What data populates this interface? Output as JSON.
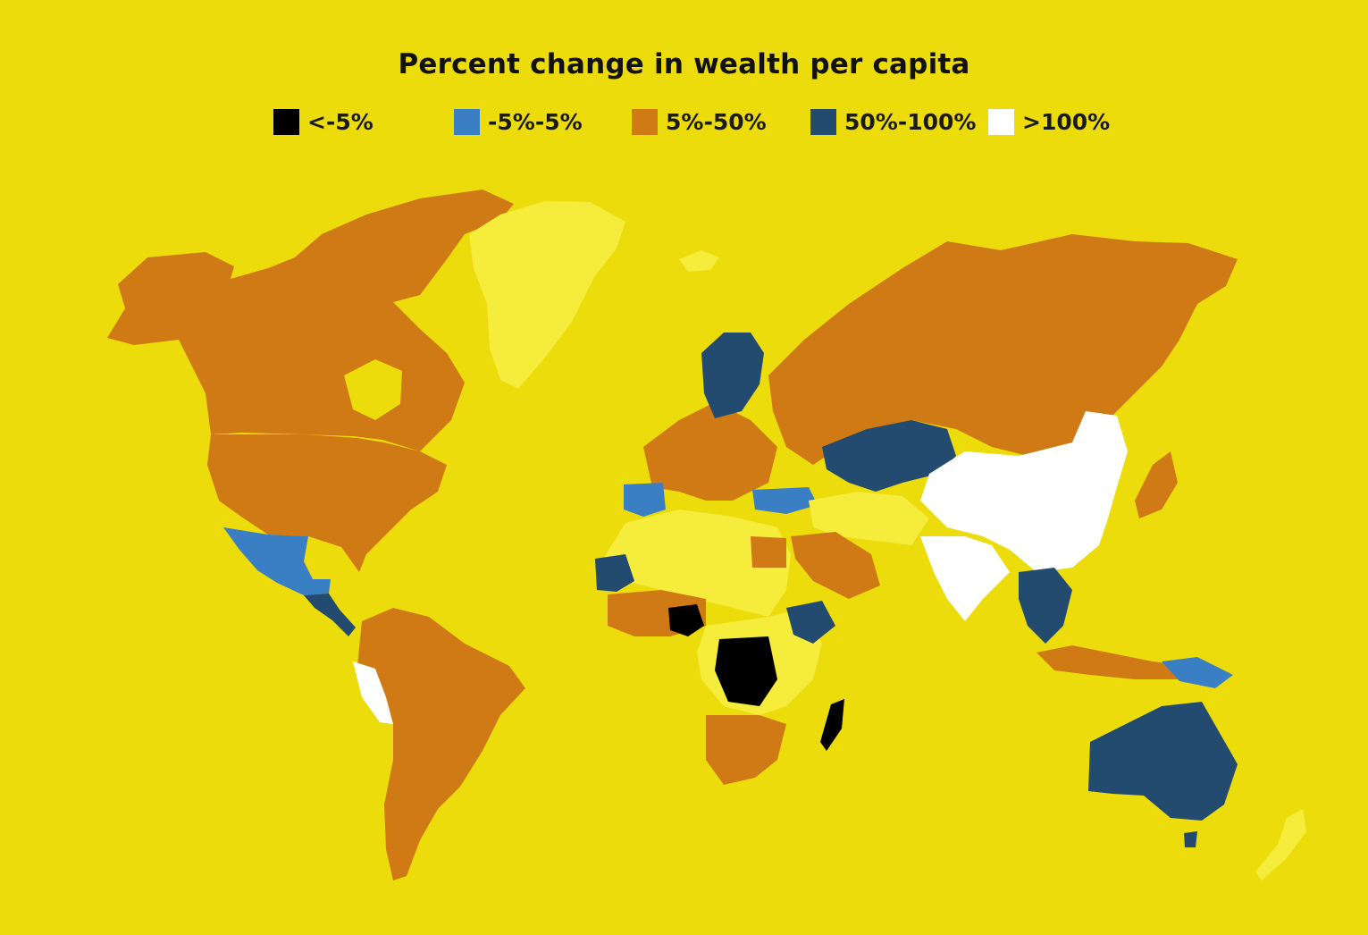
{
  "title": "Percent change in wealth per capita",
  "legend": [
    {
      "label": "<-5%",
      "color": "#000000"
    },
    {
      "label": "-5%-5%",
      "color": "#3a7fc4"
    },
    {
      "label": "5%-50%",
      "color": "#cf7a14"
    },
    {
      "label": "50%-100%",
      "color": "#234a6f"
    },
    {
      "label": ">100%",
      "color": "#ffffff"
    }
  ],
  "colors": {
    "background": "#eddc0c",
    "no_data": "#f6ec3c"
  },
  "regions": [
    {
      "name": "Canada",
      "class": "5%-50%"
    },
    {
      "name": "United States",
      "class": "5%-50%"
    },
    {
      "name": "Mexico",
      "class": "-5%-5%"
    },
    {
      "name": "Greenland",
      "class": "no data"
    },
    {
      "name": "Brazil",
      "class": "5%-50%"
    },
    {
      "name": "Argentina",
      "class": "5%-50%"
    },
    {
      "name": "Peru",
      "class": ">100%"
    },
    {
      "name": "Russia",
      "class": "5%-50%"
    },
    {
      "name": "China",
      "class": ">100%"
    },
    {
      "name": "India",
      "class": ">100%"
    },
    {
      "name": "Kazakhstan",
      "class": "50%-100%"
    },
    {
      "name": "Australia",
      "class": "50%-100%"
    },
    {
      "name": "Democratic Republic of the Congo",
      "class": "<-5%"
    },
    {
      "name": "Madagascar",
      "class": "<-5%"
    },
    {
      "name": "Nigeria",
      "class": "<-5%"
    },
    {
      "name": "Ethiopia",
      "class": "50%-100%"
    },
    {
      "name": "Mauritania",
      "class": "50%-100%"
    },
    {
      "name": "Spain",
      "class": "-5%-5%"
    },
    {
      "name": "Turkey",
      "class": "-5%-5%"
    },
    {
      "name": "Egypt",
      "class": "5%-50%"
    },
    {
      "name": "Saudi Arabia",
      "class": "5%-50%"
    },
    {
      "name": "Sweden",
      "class": "50%-100%"
    }
  ]
}
